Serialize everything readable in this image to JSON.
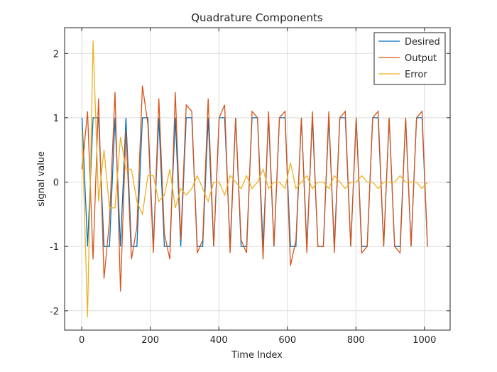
{
  "chart_data": {
    "type": "line",
    "title": "Quadrature Components",
    "xlabel": "Time Index",
    "ylabel": "signal value",
    "xlim": [
      -50,
      1075
    ],
    "ylim": [
      -2.3,
      2.4
    ],
    "xticks": [
      0,
      200,
      400,
      600,
      800,
      1000
    ],
    "yticks": [
      -2,
      -1,
      0,
      1,
      2
    ],
    "xtick_labels": [
      "0",
      "200",
      "400",
      "600",
      "800",
      "1000"
    ],
    "ytick_labels": [
      "-2",
      "-1",
      "0",
      "1",
      "2"
    ],
    "grid": true,
    "legend_position": "top-right",
    "x_start": 1,
    "x_step": 16,
    "series": [
      {
        "name": "Desired",
        "color": "#0072BD",
        "values": [
          1,
          -1,
          1,
          1,
          -1,
          -1,
          1,
          -1,
          1,
          -1,
          -1,
          1,
          1,
          -1,
          1,
          -1,
          -1,
          1,
          -1,
          1,
          1,
          -1,
          -1,
          1,
          -1,
          1,
          1,
          -1,
          1,
          -1,
          -1,
          1,
          1,
          -1,
          1,
          -1,
          1,
          1,
          -1,
          -1,
          1,
          -1,
          1,
          -1,
          -1,
          1,
          -1,
          1,
          1,
          -1,
          1,
          -1,
          -1,
          1,
          1,
          -1,
          1,
          -1,
          -1,
          1,
          -1,
          1,
          1,
          -1
        ]
      },
      {
        "name": "Output",
        "color": "#D95319",
        "values": [
          0.2,
          1.1,
          -1.2,
          1.3,
          -1.5,
          -0.6,
          1.4,
          -1.7,
          0.8,
          -1.2,
          -0.7,
          1.5,
          0.9,
          -1.1,
          1.3,
          -0.8,
          -1.2,
          1.4,
          -0.9,
          1.2,
          1.1,
          -1.1,
          -0.9,
          1.3,
          -1.0,
          1.0,
          1.2,
          -1.1,
          1.0,
          -0.9,
          -1.1,
          1.1,
          1.0,
          -1.2,
          1.1,
          -1.0,
          1.0,
          1.1,
          -1.3,
          -0.9,
          1.0,
          -1.1,
          1.1,
          -1.0,
          -1.0,
          1.1,
          -1.1,
          1.0,
          1.1,
          -1.0,
          1.0,
          -1.1,
          -1.0,
          1.0,
          1.1,
          -1.0,
          1.0,
          -1.0,
          -1.1,
          1.0,
          -1.0,
          1.0,
          1.1,
          -1.0
        ]
      },
      {
        "name": "Error",
        "color": "#EDB120",
        "values": [
          0.8,
          -2.1,
          2.2,
          -0.3,
          0.5,
          -0.4,
          -0.4,
          0.7,
          0.2,
          0.2,
          -0.3,
          -0.5,
          0.1,
          0.1,
          -0.3,
          -0.2,
          0.2,
          -0.4,
          -0.1,
          -0.2,
          -0.1,
          0.1,
          -0.1,
          -0.3,
          0.0,
          0.0,
          -0.2,
          0.1,
          0.0,
          -0.1,
          0.1,
          -0.1,
          0.0,
          0.2,
          -0.1,
          0.0,
          0.0,
          -0.1,
          0.3,
          -0.1,
          0.0,
          0.1,
          -0.1,
          0.0,
          0.0,
          -0.1,
          0.1,
          0.0,
          -0.1,
          0.0,
          0.0,
          0.1,
          0.0,
          0.0,
          -0.1,
          0.0,
          0.0,
          0.0,
          0.1,
          0.0,
          0.0,
          0.0,
          -0.1,
          0.0
        ]
      }
    ]
  }
}
